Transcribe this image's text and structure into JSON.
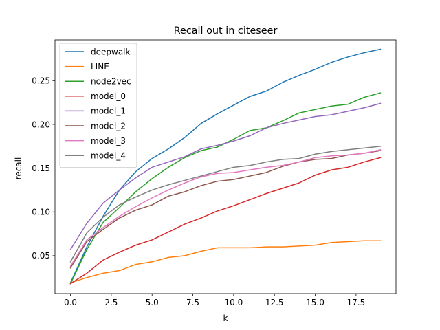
{
  "chart_data": {
    "type": "line",
    "title": "Recall out in citeseer",
    "xlabel": "k",
    "ylabel": "recall",
    "xlim": [
      -0.95,
      19.95
    ],
    "ylim": [
      0.0067,
      0.2966
    ],
    "xticks": [
      0,
      2.5,
      5,
      7.5,
      10,
      12.5,
      15,
      17.5
    ],
    "xtick_labels": [
      "0.0",
      "2.5",
      "5.0",
      "7.5",
      "10.0",
      "12.5",
      "15.0",
      "17.5"
    ],
    "yticks": [
      0.05,
      0.1,
      0.15,
      0.2,
      0.25
    ],
    "ytick_labels": [
      "0.05",
      "0.10",
      "0.15",
      "0.20",
      "0.25"
    ],
    "grid": false,
    "legend_position": "upper-left",
    "x": [
      0,
      1,
      2,
      3,
      4,
      5,
      6,
      7,
      8,
      9,
      10,
      11,
      12,
      13,
      14,
      15,
      16,
      17,
      18,
      19
    ],
    "series": [
      {
        "name": "deepwalk",
        "color": "#1f77b4",
        "values": [
          0.019,
          0.06,
          0.095,
          0.125,
          0.146,
          0.161,
          0.172,
          0.185,
          0.201,
          0.212,
          0.222,
          0.232,
          0.238,
          0.248,
          0.256,
          0.263,
          0.271,
          0.277,
          0.282,
          0.286
        ]
      },
      {
        "name": "LINE",
        "color": "#ff7f0e",
        "values": [
          0.019,
          0.025,
          0.03,
          0.033,
          0.04,
          0.043,
          0.048,
          0.05,
          0.055,
          0.059,
          0.059,
          0.059,
          0.06,
          0.06,
          0.061,
          0.062,
          0.065,
          0.066,
          0.067,
          0.067
        ]
      },
      {
        "name": "node2vec",
        "color": "#2ca02c",
        "values": [
          0.018,
          0.057,
          0.088,
          0.105,
          0.123,
          0.138,
          0.151,
          0.162,
          0.17,
          0.174,
          0.183,
          0.193,
          0.196,
          0.204,
          0.213,
          0.217,
          0.221,
          0.223,
          0.231,
          0.236
        ]
      },
      {
        "name": "model_0",
        "color": "#d62728",
        "values": [
          0.018,
          0.03,
          0.045,
          0.054,
          0.062,
          0.068,
          0.077,
          0.086,
          0.093,
          0.101,
          0.107,
          0.114,
          0.121,
          0.127,
          0.133,
          0.142,
          0.148,
          0.151,
          0.157,
          0.162
        ]
      },
      {
        "name": "model_1",
        "color": "#9467bd",
        "values": [
          0.057,
          0.087,
          0.11,
          0.125,
          0.139,
          0.151,
          0.157,
          0.163,
          0.172,
          0.176,
          0.181,
          0.187,
          0.196,
          0.201,
          0.205,
          0.209,
          0.211,
          0.215,
          0.219,
          0.224
        ]
      },
      {
        "name": "model_2",
        "color": "#8c564b",
        "values": [
          0.036,
          0.066,
          0.08,
          0.093,
          0.102,
          0.108,
          0.118,
          0.123,
          0.13,
          0.135,
          0.137,
          0.141,
          0.145,
          0.152,
          0.157,
          0.16,
          0.161,
          0.165,
          0.167,
          0.17
        ]
      },
      {
        "name": "model_3",
        "color": "#e377c2",
        "values": [
          0.038,
          0.068,
          0.082,
          0.095,
          0.106,
          0.116,
          0.125,
          0.133,
          0.14,
          0.144,
          0.145,
          0.148,
          0.151,
          0.153,
          0.157,
          0.162,
          0.164,
          0.165,
          0.167,
          0.171
        ]
      },
      {
        "name": "model_4",
        "color": "#7f7f7f",
        "values": [
          0.043,
          0.076,
          0.094,
          0.108,
          0.117,
          0.125,
          0.131,
          0.136,
          0.141,
          0.146,
          0.151,
          0.153,
          0.157,
          0.16,
          0.161,
          0.166,
          0.169,
          0.171,
          0.173,
          0.175
        ]
      }
    ]
  }
}
